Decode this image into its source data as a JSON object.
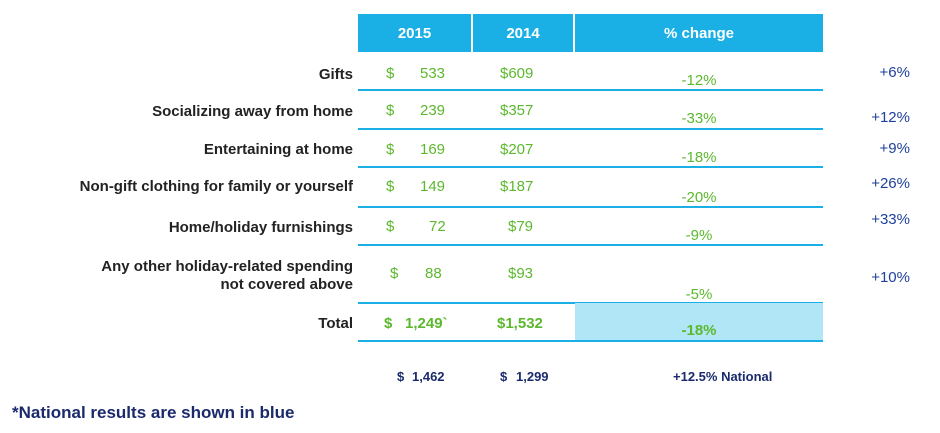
{
  "header": {
    "col1": "2015",
    "col2": "2014",
    "col3": "% change"
  },
  "rows": [
    {
      "label": "Gifts",
      "dollar": "$",
      "v2015": "533",
      "v2014": "$609",
      "change": "-12%",
      "national": "+6%"
    },
    {
      "label": "Socializing away from home",
      "dollar": "$",
      "v2015": "239",
      "v2014": "$357",
      "change": "-33%",
      "national": "+12%"
    },
    {
      "label": "Entertaining at home",
      "dollar": "$",
      "v2015": "169",
      "v2014": "$207",
      "change": "-18%",
      "national": "+9%"
    },
    {
      "label": "Non-gift clothing for family or yourself",
      "dollar": "$",
      "v2015": "149",
      "v2014": "$187",
      "change": "-20%",
      "national": "+26%"
    },
    {
      "label": "Home/holiday furnishings",
      "dollar": "$",
      "v2015": "72",
      "v2014": "$79",
      "change": "-9%",
      "national": "+33%"
    },
    {
      "label_line1": "Any other holiday-related spending",
      "label_line2": "not covered above",
      "dollar": "$",
      "v2015": "88",
      "v2014": "$93",
      "change": "-5%",
      "national": "+10%"
    }
  ],
  "total": {
    "label": "Total",
    "dollar": "$",
    "v2015": "1,249`",
    "v2014": "$1,532",
    "change": "-18%"
  },
  "national_totals": {
    "dollar1": "$",
    "v2015": "1,462",
    "dollar2": "$",
    "v2014": "1,299",
    "change": "+12.5% National"
  },
  "footnote": "*National results are shown in blue",
  "colors": {
    "header": "#1ab0e6",
    "value_green": "#5cb82e",
    "national_blue": "#1f3f9a",
    "total_fill": "#b1e6f7"
  }
}
